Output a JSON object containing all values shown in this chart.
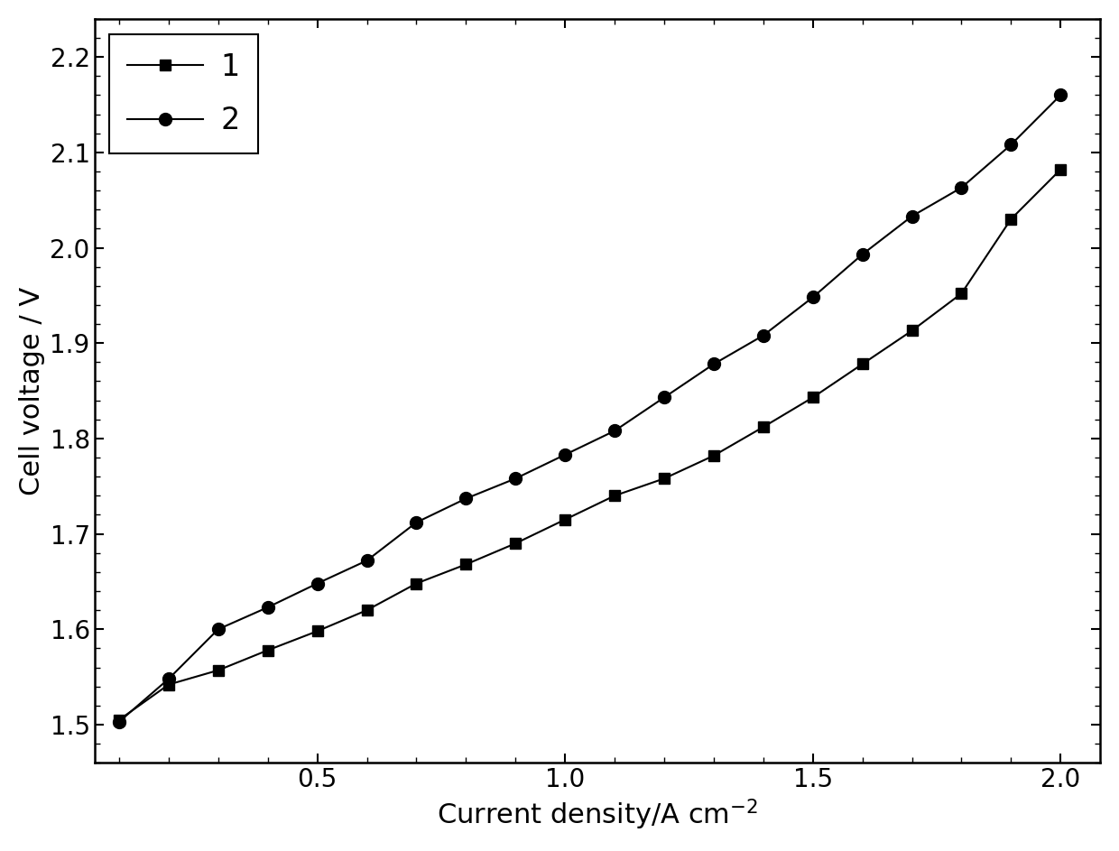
{
  "series1_x": [
    0.1,
    0.2,
    0.3,
    0.4,
    0.5,
    0.6,
    0.7,
    0.8,
    0.9,
    1.0,
    1.1,
    1.2,
    1.3,
    1.4,
    1.5,
    1.6,
    1.7,
    1.8,
    1.9,
    2.0
  ],
  "series1_y": [
    1.505,
    1.542,
    1.557,
    1.578,
    1.598,
    1.62,
    1.648,
    1.668,
    1.69,
    1.715,
    1.74,
    1.758,
    1.782,
    1.812,
    1.843,
    1.878,
    1.913,
    1.952,
    2.03,
    2.082
  ],
  "series2_x": [
    0.1,
    0.2,
    0.3,
    0.4,
    0.5,
    0.6,
    0.7,
    0.8,
    0.9,
    1.0,
    1.1,
    1.2,
    1.3,
    1.4,
    1.5,
    1.6,
    1.7,
    1.8,
    1.9,
    2.0
  ],
  "series2_y": [
    1.503,
    1.548,
    1.6,
    1.623,
    1.648,
    1.672,
    1.712,
    1.737,
    1.758,
    1.783,
    1.808,
    1.843,
    1.878,
    1.908,
    1.948,
    1.993,
    2.033,
    2.063,
    2.108,
    2.16
  ],
  "xlabel": "Current density/A cm$^{-2}$",
  "ylabel": "Cell voltage / V",
  "xlim": [
    0.05,
    2.08
  ],
  "ylim": [
    1.46,
    2.24
  ],
  "xticks": [
    0.5,
    1.0,
    1.5,
    2.0
  ],
  "yticks": [
    1.5,
    1.6,
    1.7,
    1.8,
    1.9,
    2.0,
    2.1,
    2.2
  ],
  "legend_labels": [
    "1",
    "2"
  ],
  "line_color": "#000000",
  "marker1": "s",
  "marker2": "o",
  "markersize1": 9,
  "markersize2": 10,
  "linewidth": 1.5,
  "xlabel_fontsize": 22,
  "ylabel_fontsize": 22,
  "tick_fontsize": 20,
  "legend_fontsize": 24,
  "background_color": "#ffffff"
}
